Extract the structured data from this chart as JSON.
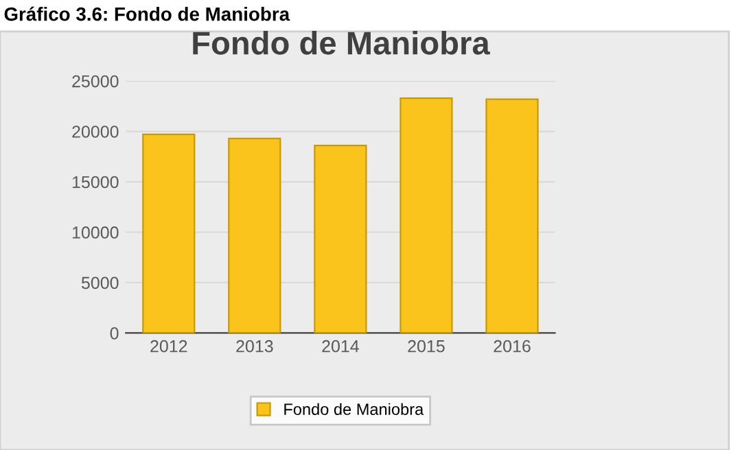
{
  "chart_data": {
    "type": "bar",
    "title": "Fondo de Maniobra",
    "annotations": [
      "Gráfico 3.6: Fondo de Maniobra"
    ],
    "categories": [
      "2012",
      "2013",
      "2014",
      "2015",
      "2016"
    ],
    "series": [
      {
        "name": "Fondo de Maniobra",
        "color": "#fbc41c",
        "values": [
          19700,
          19300,
          18600,
          23300,
          23200
        ]
      }
    ],
    "ylim": [
      0,
      25000
    ],
    "yticks": [
      0,
      5000,
      10000,
      15000,
      20000,
      25000
    ],
    "grid": "y",
    "legend": "bottom"
  }
}
